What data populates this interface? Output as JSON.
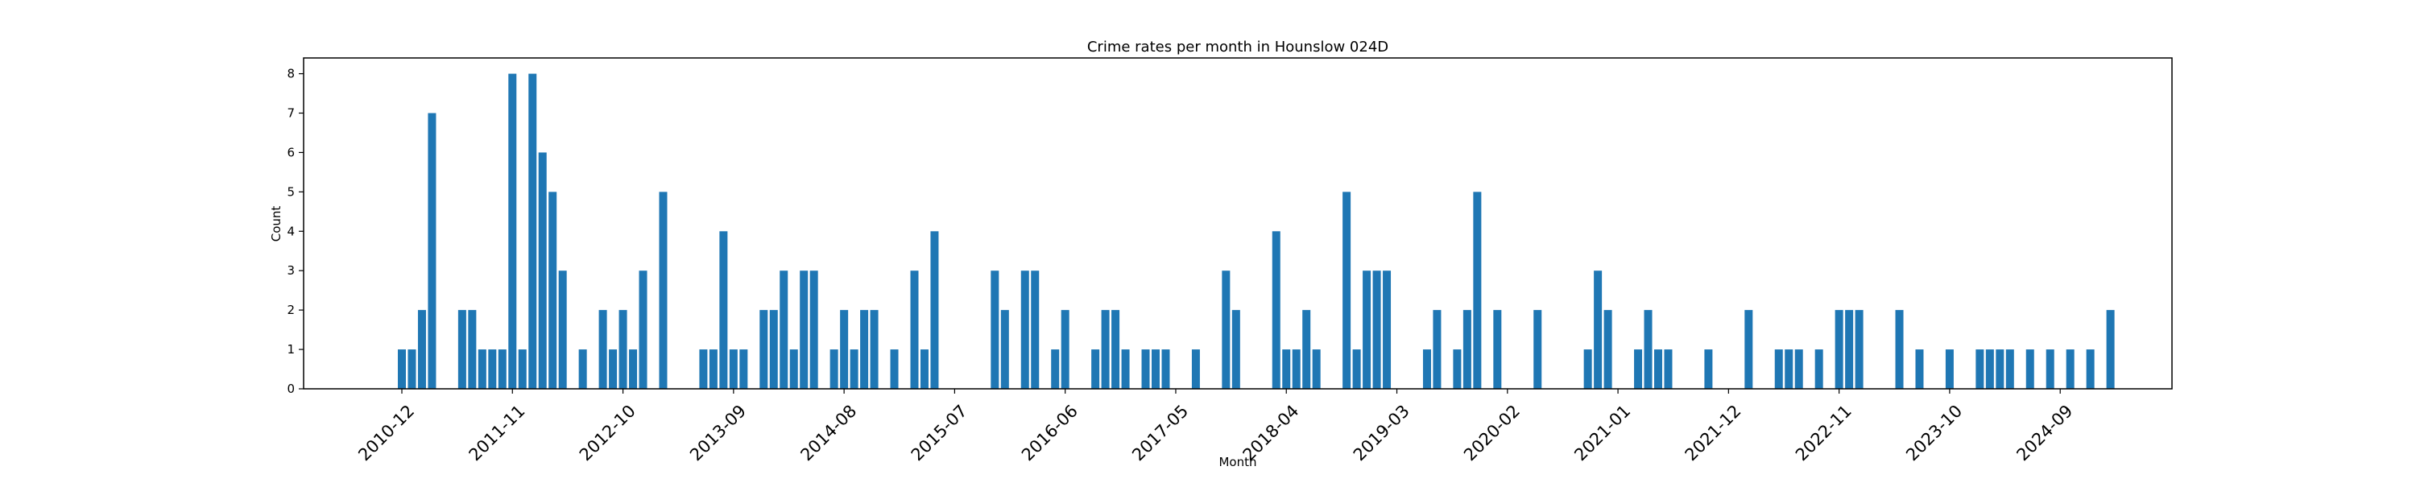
{
  "chart_data": {
    "type": "bar",
    "title": "Crime rates per month in Hounslow 024D",
    "xlabel": "Month",
    "ylabel": "Count",
    "ylim": [
      0,
      8.4
    ],
    "grid": false,
    "bar_color": "#1f77b4",
    "x_start": "2010-12",
    "x_tick_labels": [
      "2010-12",
      "2011-11",
      "2012-10",
      "2013-09",
      "2014-08",
      "2015-07",
      "2016-06",
      "2017-05",
      "2018-04",
      "2019-03",
      "2020-02",
      "2021-01",
      "2021-12",
      "2022-11",
      "2023-10",
      "2024-09"
    ],
    "y_ticks": [
      0,
      1,
      2,
      3,
      4,
      5,
      6,
      7,
      8
    ],
    "bars": [
      {
        "x": "2010-12",
        "y": 1
      },
      {
        "x": "2011-01",
        "y": 1
      },
      {
        "x": "2011-02",
        "y": 2
      },
      {
        "x": "2011-03",
        "y": 7
      },
      {
        "x": "2011-06",
        "y": 2
      },
      {
        "x": "2011-07",
        "y": 2
      },
      {
        "x": "2011-08",
        "y": 1
      },
      {
        "x": "2011-09",
        "y": 1
      },
      {
        "x": "2011-10",
        "y": 1
      },
      {
        "x": "2011-11",
        "y": 8
      },
      {
        "x": "2011-12",
        "y": 1
      },
      {
        "x": "2012-01",
        "y": 8
      },
      {
        "x": "2012-02",
        "y": 6
      },
      {
        "x": "2012-03",
        "y": 5
      },
      {
        "x": "2012-04",
        "y": 3
      },
      {
        "x": "2012-06",
        "y": 1
      },
      {
        "x": "2012-08",
        "y": 2
      },
      {
        "x": "2012-09",
        "y": 1
      },
      {
        "x": "2012-10",
        "y": 2
      },
      {
        "x": "2012-11",
        "y": 1
      },
      {
        "x": "2012-12",
        "y": 3
      },
      {
        "x": "2013-02",
        "y": 5
      },
      {
        "x": "2013-06",
        "y": 1
      },
      {
        "x": "2013-07",
        "y": 1
      },
      {
        "x": "2013-08",
        "y": 4
      },
      {
        "x": "2013-09",
        "y": 1
      },
      {
        "x": "2013-10",
        "y": 1
      },
      {
        "x": "2013-12",
        "y": 2
      },
      {
        "x": "2014-01",
        "y": 2
      },
      {
        "x": "2014-02",
        "y": 3
      },
      {
        "x": "2014-03",
        "y": 1
      },
      {
        "x": "2014-04",
        "y": 3
      },
      {
        "x": "2014-05",
        "y": 3
      },
      {
        "x": "2014-07",
        "y": 1
      },
      {
        "x": "2014-08",
        "y": 2
      },
      {
        "x": "2014-09",
        "y": 1
      },
      {
        "x": "2014-10",
        "y": 2
      },
      {
        "x": "2014-11",
        "y": 2
      },
      {
        "x": "2015-01",
        "y": 1
      },
      {
        "x": "2015-03",
        "y": 3
      },
      {
        "x": "2015-04",
        "y": 1
      },
      {
        "x": "2015-05",
        "y": 4
      },
      {
        "x": "2015-11",
        "y": 3
      },
      {
        "x": "2015-12",
        "y": 2
      },
      {
        "x": "2016-02",
        "y": 3
      },
      {
        "x": "2016-03",
        "y": 3
      },
      {
        "x": "2016-05",
        "y": 1
      },
      {
        "x": "2016-06",
        "y": 2
      },
      {
        "x": "2016-09",
        "y": 1
      },
      {
        "x": "2016-10",
        "y": 2
      },
      {
        "x": "2016-11",
        "y": 2
      },
      {
        "x": "2016-12",
        "y": 1
      },
      {
        "x": "2017-02",
        "y": 1
      },
      {
        "x": "2017-03",
        "y": 1
      },
      {
        "x": "2017-04",
        "y": 1
      },
      {
        "x": "2017-07",
        "y": 1
      },
      {
        "x": "2017-10",
        "y": 3
      },
      {
        "x": "2017-11",
        "y": 2
      },
      {
        "x": "2018-03",
        "y": 4
      },
      {
        "x": "2018-04",
        "y": 1
      },
      {
        "x": "2018-05",
        "y": 1
      },
      {
        "x": "2018-06",
        "y": 2
      },
      {
        "x": "2018-07",
        "y": 1
      },
      {
        "x": "2018-10",
        "y": 5
      },
      {
        "x": "2018-11",
        "y": 1
      },
      {
        "x": "2018-12",
        "y": 3
      },
      {
        "x": "2019-01",
        "y": 3
      },
      {
        "x": "2019-02",
        "y": 3
      },
      {
        "x": "2019-06",
        "y": 1
      },
      {
        "x": "2019-07",
        "y": 2
      },
      {
        "x": "2019-09",
        "y": 1
      },
      {
        "x": "2019-10",
        "y": 2
      },
      {
        "x": "2019-11",
        "y": 5
      },
      {
        "x": "2020-01",
        "y": 2
      },
      {
        "x": "2020-05",
        "y": 2
      },
      {
        "x": "2020-10",
        "y": 1
      },
      {
        "x": "2020-11",
        "y": 3
      },
      {
        "x": "2020-12",
        "y": 2
      },
      {
        "x": "2021-03",
        "y": 1
      },
      {
        "x": "2021-04",
        "y": 2
      },
      {
        "x": "2021-05",
        "y": 1
      },
      {
        "x": "2021-06",
        "y": 1
      },
      {
        "x": "2021-10",
        "y": 1
      },
      {
        "x": "2022-02",
        "y": 2
      },
      {
        "x": "2022-05",
        "y": 1
      },
      {
        "x": "2022-06",
        "y": 1
      },
      {
        "x": "2022-07",
        "y": 1
      },
      {
        "x": "2022-09",
        "y": 1
      },
      {
        "x": "2022-11",
        "y": 2
      },
      {
        "x": "2022-12",
        "y": 2
      },
      {
        "x": "2023-01",
        "y": 2
      },
      {
        "x": "2023-05",
        "y": 2
      },
      {
        "x": "2023-07",
        "y": 1
      },
      {
        "x": "2023-10",
        "y": 1
      },
      {
        "x": "2024-01",
        "y": 1
      },
      {
        "x": "2024-02",
        "y": 1
      },
      {
        "x": "2024-03",
        "y": 1
      },
      {
        "x": "2024-04",
        "y": 1
      },
      {
        "x": "2024-06",
        "y": 1
      },
      {
        "x": "2024-08",
        "y": 1
      },
      {
        "x": "2024-10",
        "y": 1
      },
      {
        "x": "2024-12",
        "y": 1
      },
      {
        "x": "2025-02",
        "y": 2
      }
    ]
  }
}
